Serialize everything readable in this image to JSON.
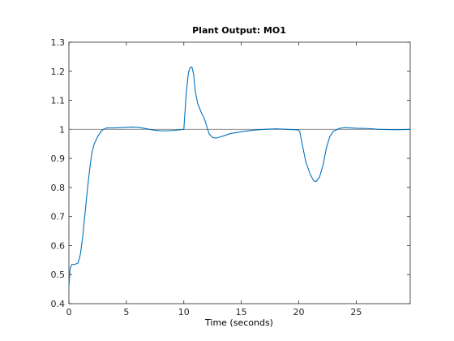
{
  "chart_data": {
    "type": "line",
    "title": "Plant Output:  MO1",
    "xlabel": "Time (seconds)",
    "ylabel": "",
    "xlim": [
      0,
      29.7
    ],
    "ylim": [
      0.4,
      1.3
    ],
    "xticks": [
      0,
      5,
      10,
      15,
      20,
      25
    ],
    "yticks": [
      0.4,
      0.5,
      0.6,
      0.7,
      0.8,
      0.9,
      1,
      1.1,
      1.2,
      1.3
    ],
    "xtick_labels": [
      "0",
      "5",
      "10",
      "15",
      "20",
      "25"
    ],
    "ytick_labels": [
      "0.4",
      "0.5",
      "0.6",
      "0.7",
      "0.8",
      "0.9",
      "1",
      "1.1",
      "1.2",
      "1.3"
    ],
    "grid": false,
    "series": [
      {
        "name": "",
        "color": "#0072bd",
        "x": [
          0,
          0.1,
          0.25,
          0.5,
          0.8,
          1.0,
          1.2,
          1.4,
          1.6,
          1.8,
          2.0,
          2.2,
          2.5,
          2.8,
          3.0,
          3.3,
          3.6,
          4.0,
          4.5,
          5.0,
          5.5,
          6.0,
          6.5,
          7.0,
          7.5,
          8.0,
          8.5,
          9.0,
          9.5,
          10.0,
          10.05,
          10.2,
          10.4,
          10.55,
          10.7,
          10.85,
          11.0,
          11.2,
          11.5,
          11.8,
          12.0,
          12.2,
          12.5,
          12.8,
          13.0,
          13.5,
          14.0,
          15.0,
          16.0,
          17.0,
          18.0,
          19.0,
          19.5,
          20.0,
          20.1,
          20.3,
          20.6,
          21.0,
          21.3,
          21.5,
          21.8,
          22.1,
          22.4,
          22.7,
          23.0,
          23.5,
          24.0,
          25.0,
          26.0,
          27.0,
          28.0,
          29.0,
          29.7
        ],
        "y": [
          0.46,
          0.52,
          0.535,
          0.535,
          0.54,
          0.57,
          0.63,
          0.71,
          0.79,
          0.86,
          0.92,
          0.95,
          0.975,
          0.993,
          1.0,
          1.005,
          1.005,
          1.005,
          1.006,
          1.007,
          1.008,
          1.007,
          1.004,
          1.0,
          0.997,
          0.995,
          0.995,
          0.996,
          0.998,
          1.0,
          1.03,
          1.12,
          1.195,
          1.213,
          1.215,
          1.19,
          1.13,
          1.09,
          1.06,
          1.035,
          1.01,
          0.985,
          0.972,
          0.97,
          0.972,
          0.978,
          0.985,
          0.992,
          0.997,
          1.0,
          1.002,
          1.0,
          0.999,
          0.998,
          0.99,
          0.95,
          0.89,
          0.845,
          0.823,
          0.82,
          0.835,
          0.875,
          0.935,
          0.975,
          0.993,
          1.003,
          1.006,
          1.004,
          1.003,
          1.0,
          0.999,
          0.999,
          1.0
        ]
      },
      {
        "name": "",
        "color": "#808080",
        "x": [
          0,
          29.7
        ],
        "y": [
          1,
          1
        ]
      }
    ]
  }
}
